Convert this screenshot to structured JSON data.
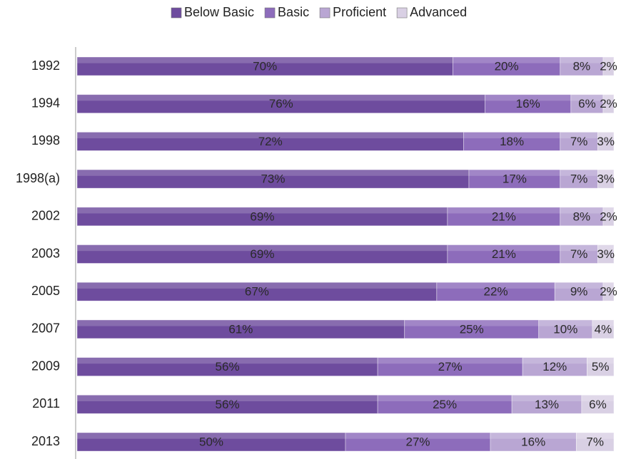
{
  "chart_data": {
    "type": "stacked-bar-horizontal",
    "categories": [
      "1992",
      "1994",
      "1998",
      "1998(a)",
      "2002",
      "2003",
      "2005",
      "2007",
      "2009",
      "2011",
      "2013"
    ],
    "xlim": [
      0,
      100
    ],
    "series": [
      {
        "name": "Below Basic",
        "color": "#6e4c9e",
        "values": [
          70,
          76,
          72,
          73,
          69,
          69,
          67,
          61,
          56,
          56,
          50
        ],
        "value_labels": [
          "70%",
          "76%",
          "72%",
          "73%",
          "69%",
          "69%",
          "67%",
          "61%",
          "56%",
          "56%",
          "50%"
        ]
      },
      {
        "name": "Basic",
        "color": "#8d6cbb",
        "values": [
          20,
          16,
          18,
          17,
          21,
          21,
          22,
          25,
          27,
          25,
          27
        ],
        "value_labels": [
          "20%",
          "16%",
          "18%",
          "17%",
          "21%",
          "21%",
          "22%",
          "25%",
          "27%",
          "25%",
          "27%"
        ]
      },
      {
        "name": "Proficient",
        "color": "#b9a6d3",
        "values": [
          8,
          6,
          7,
          7,
          8,
          7,
          9,
          10,
          12,
          13,
          16
        ],
        "value_labels": [
          "8%",
          "6%",
          "7%",
          "7%",
          "8%",
          "7%",
          "9%",
          "10%",
          "12%",
          "13%",
          "16%"
        ]
      },
      {
        "name": "Advanced",
        "color": "#d9d0e4",
        "values": [
          2,
          2,
          3,
          3,
          2,
          3,
          2,
          4,
          5,
          6,
          7
        ],
        "value_labels": [
          "2%",
          "2%",
          "3%",
          "3%",
          "2%",
          "3%",
          "2%",
          "4%",
          "5%",
          "6%",
          "7%"
        ]
      }
    ]
  }
}
